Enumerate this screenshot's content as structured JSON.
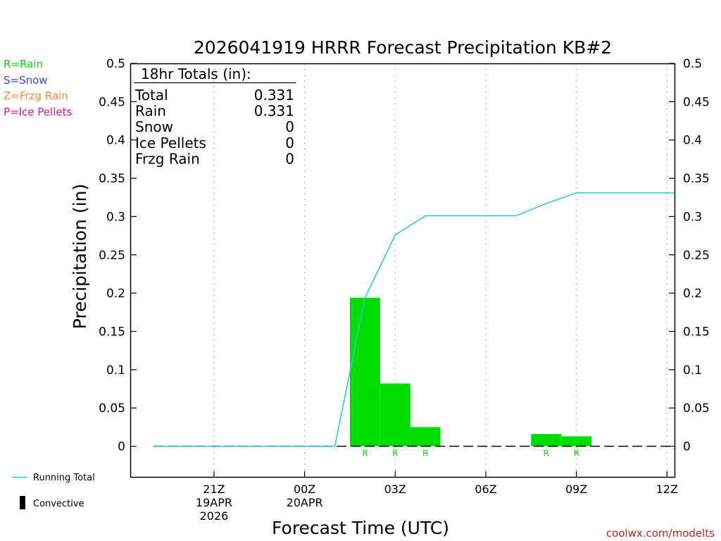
{
  "chart_data": {
    "type": "bar",
    "title": "2026041919 HRRR Forecast Precipitation KB#2",
    "xlabel": "Forecast Time (UTC)",
    "ylabel": "Precipitation (in)",
    "ylim": [
      -0.04,
      0.5
    ],
    "xlim_hours": [
      -0.75,
      17.25
    ],
    "yticks": [
      0,
      0.05,
      0.1,
      0.15,
      0.2,
      0.25,
      0.3,
      0.35,
      0.4,
      0.45,
      0.5
    ],
    "ytick_labels": [
      "0",
      "0.05",
      "0.1",
      "0.15",
      "0.2",
      "0.25",
      "0.3",
      "0.35",
      "0.4",
      "0.45",
      "0.5"
    ],
    "xticks": [
      {
        "hour": 2,
        "label": "21Z",
        "sub1": "19APR",
        "sub2": "2026"
      },
      {
        "hour": 5,
        "label": "00Z",
        "sub1": "20APR",
        "sub2": ""
      },
      {
        "hour": 8,
        "label": "03Z",
        "sub1": "",
        "sub2": ""
      },
      {
        "hour": 11,
        "label": "06Z",
        "sub1": "",
        "sub2": ""
      },
      {
        "hour": 14,
        "label": "09Z",
        "sub1": "",
        "sub2": ""
      },
      {
        "hour": 17,
        "label": "12Z",
        "sub1": "",
        "sub2": ""
      }
    ],
    "bars": [
      {
        "hour": 7,
        "value": 0.194,
        "type_label": "R"
      },
      {
        "hour": 8,
        "value": 0.082,
        "type_label": "R"
      },
      {
        "hour": 9,
        "value": 0.025,
        "type_label": "R"
      },
      {
        "hour": 13,
        "value": 0.016,
        "type_label": "R"
      },
      {
        "hour": 14,
        "value": 0.013,
        "type_label": "R"
      }
    ],
    "running_total": {
      "name": "Running Total",
      "hours": [
        0,
        1,
        2,
        3,
        4,
        5,
        6,
        7,
        8,
        9,
        10,
        11,
        12,
        13,
        14,
        15,
        16,
        17,
        17.25
      ],
      "values": [
        0,
        0,
        0,
        0,
        0,
        0,
        0,
        0.194,
        0.276,
        0.301,
        0.301,
        0.301,
        0.301,
        0.317,
        0.331,
        0.331,
        0.331,
        0.331,
        0.331
      ]
    },
    "colors": {
      "rain": "#00dd00",
      "snow": "#4444dd",
      "frzg_rain": "#ff8833",
      "ice_pellets": "#ee1188",
      "running_total": "#22cccc",
      "url": "#cc2222",
      "grid": "#aaaaaa"
    },
    "grid": "vertical dotted",
    "legend_placement": "left"
  },
  "totals_box": {
    "heading": "18hr Totals (in):",
    "rows": [
      {
        "label": "Total",
        "value": "0.331"
      },
      {
        "label": "Rain",
        "value": "0.331"
      },
      {
        "label": "Snow",
        "value": "0"
      },
      {
        "label": "Ice Pellets",
        "value": "0"
      },
      {
        "label": "Frzg Rain",
        "value": "0"
      }
    ]
  },
  "type_legend": [
    "R=Rain",
    "S=Snow",
    "Z=Frzg Rain",
    "P=Ice Pellets"
  ],
  "bottom_legend": {
    "running_total_label": "Running Total",
    "convective_label": "Convective"
  },
  "credit": "coolwx.com/modelts"
}
